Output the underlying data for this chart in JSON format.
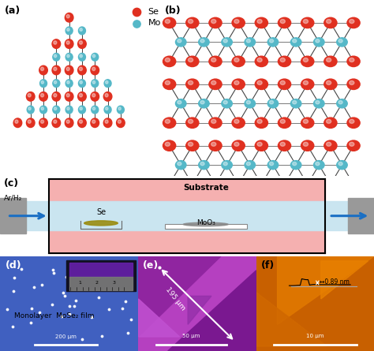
{
  "panel_labels": [
    "(a)",
    "(b)",
    "(c)",
    "(d)",
    "(e)",
    "(f)"
  ],
  "se_color": "#e03020",
  "mo_color": "#55b8c8",
  "bg_color": "#ffffff",
  "legend_se": "Se",
  "legend_mo": "Mo",
  "tube_fill": "#c8e4f0",
  "heater_pink": "#f5b0b0",
  "heater_border": "#111111",
  "gray_wall": "#999999",
  "se_label": "Se",
  "moo3_label": "MoO₃",
  "substrate_label": "Substrate",
  "arh2_label": "Ar/H₂",
  "panel_d_bg": "#4060c0",
  "panel_e_bg1": "#b050c0",
  "panel_e_bg2": "#9030a0",
  "panel_f_bg": "#c86000",
  "scale_bar_color": "#ffffff",
  "arrow_color": "#1a6fc4",
  "font_size_label": 9,
  "nm_label": "↔0.89 nm",
  "um_label_e": "195 μm",
  "scale_d": "200 μm",
  "scale_e": "50 μm",
  "scale_f": "10 μm",
  "mono_label": "Monolayer  MoSe₂ film"
}
